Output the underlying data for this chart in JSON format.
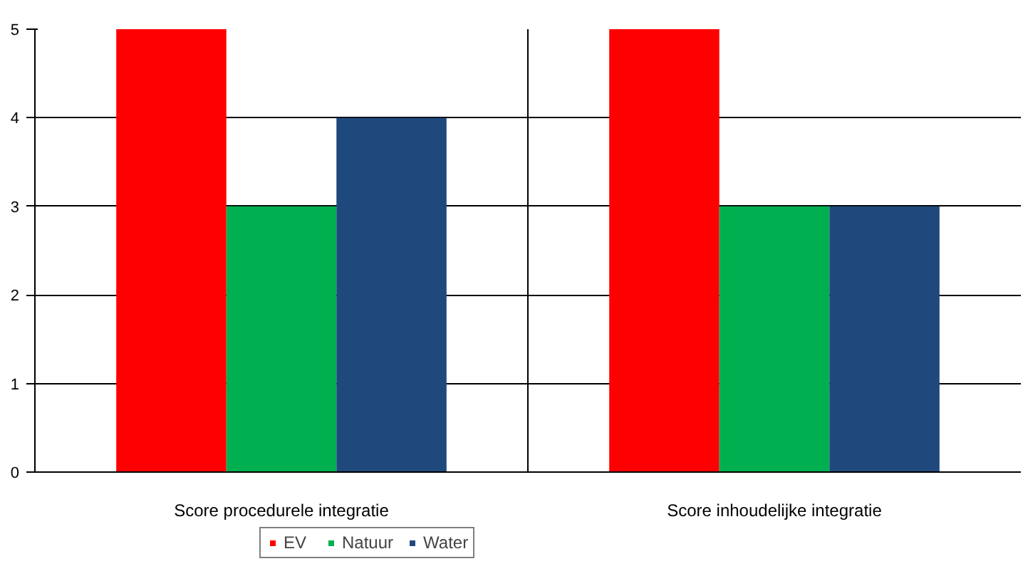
{
  "chart_data": {
    "type": "bar",
    "categories": [
      "Score procedurele integratie",
      "Score inhoudelijke integratie"
    ],
    "series": [
      {
        "name": "EV",
        "color": "#ff0000",
        "values": [
          5,
          5
        ]
      },
      {
        "name": "Natuur",
        "color": "#00b050",
        "values": [
          3,
          3
        ]
      },
      {
        "name": "Water",
        "color": "#1f497d",
        "values": [
          4,
          3
        ]
      }
    ],
    "ylim": [
      0,
      5
    ],
    "yticks": [
      0,
      1,
      2,
      3,
      4,
      5
    ],
    "grid": "y",
    "legend": "bottom"
  }
}
